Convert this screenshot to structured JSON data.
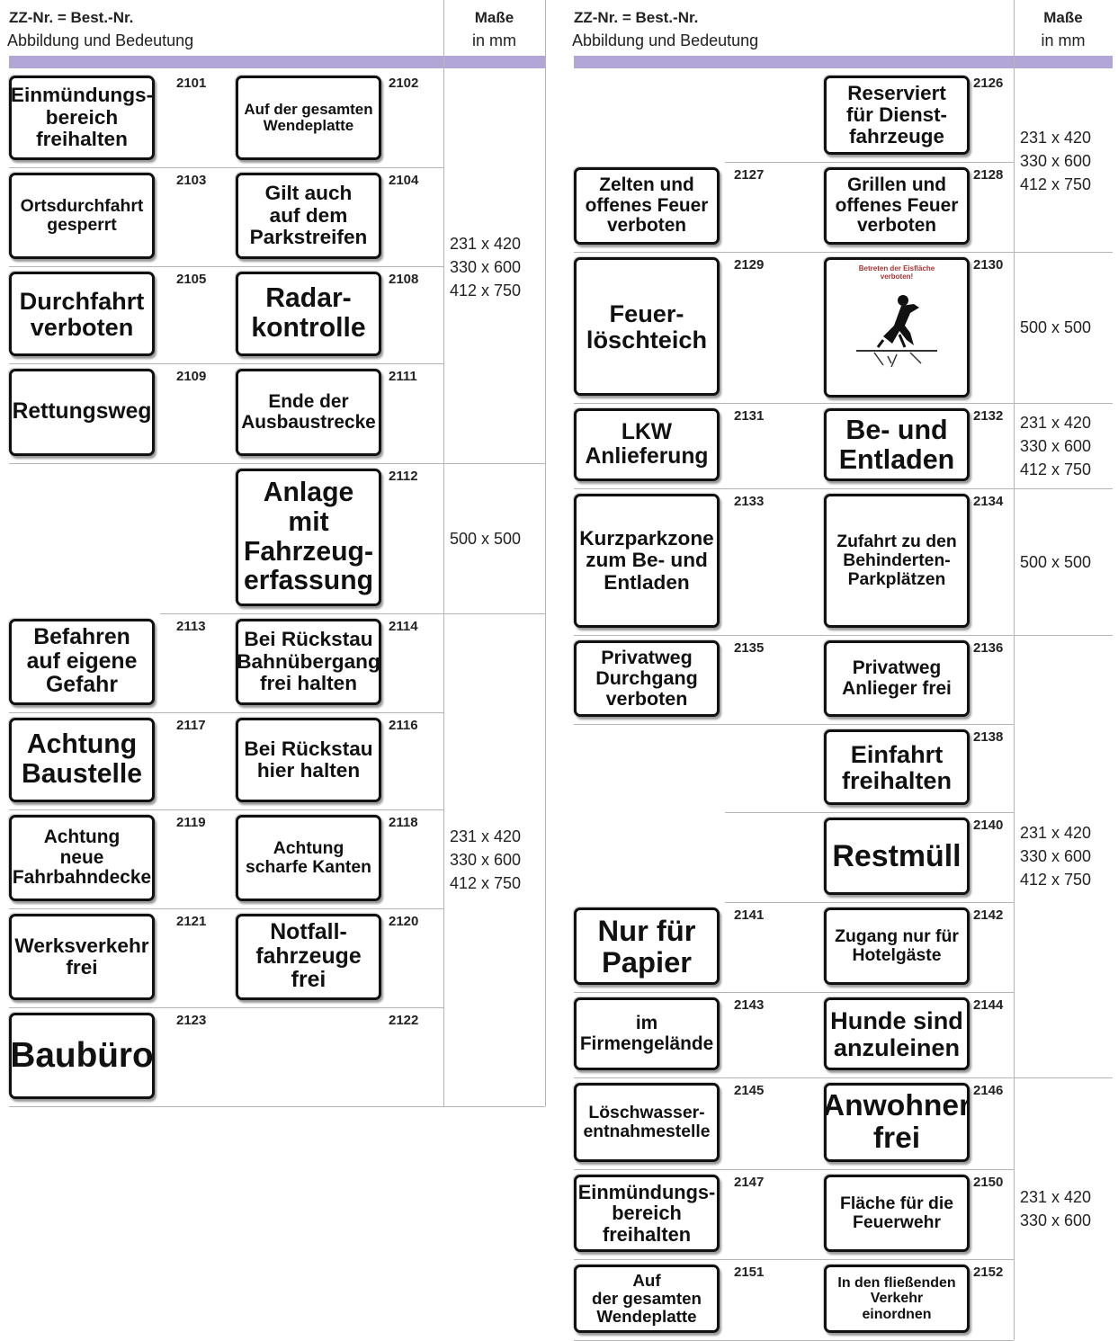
{
  "columns": [
    {
      "header": {
        "title": "ZZ-Nr. = Best.-Nr.",
        "subtitle": "Abbildung und Bedeutung",
        "size_title": "Maße",
        "size_unit": "in mm"
      },
      "groups": [
        {
          "sizes": [
            "231 x 420",
            "330 x 600",
            "412 x 750"
          ],
          "rows": [
            [
              {
                "number": "2101",
                "lines": [
                  "Einmündungs-",
                  "bereich",
                  "freihalten"
                ]
              },
              {
                "number": "2102",
                "lines": [
                  "Auf der gesamten",
                  "Wendeplatte"
                ]
              }
            ],
            [
              {
                "number": "2103",
                "lines": [
                  "Ortsdurchfahrt",
                  "gesperrt"
                ]
              },
              {
                "number": "2104",
                "lines": [
                  "Gilt auch",
                  "auf dem",
                  "Parkstreifen"
                ]
              }
            ],
            [
              {
                "number": "2105",
                "lines": [
                  "Durchfahrt",
                  "verboten"
                ]
              },
              {
                "number": "2108",
                "lines": [
                  "Radar-",
                  "kontrolle"
                ]
              }
            ],
            [
              {
                "number": "2109",
                "lines": [
                  "Rettungsweg"
                ]
              },
              {
                "number": "2111",
                "lines": [
                  "Ende der",
                  "Ausbaustrecke"
                ]
              }
            ]
          ]
        },
        {
          "sizes": [
            "500 x 500"
          ],
          "rows": [
            [
              null,
              {
                "number": "2112",
                "lines": [
                  "Anlage",
                  "mit",
                  "Fahrzeug-",
                  "erfassung"
                ]
              }
            ]
          ]
        },
        {
          "sizes": [
            "231 x 420",
            "330 x 600",
            "412 x 750"
          ],
          "rows": [
            [
              {
                "number": "2113",
                "lines": [
                  "Befahren",
                  "auf eigene",
                  "Gefahr"
                ]
              },
              {
                "number": "2114",
                "lines": [
                  "Bei Rückstau",
                  "Bahnübergang",
                  "frei halten"
                ]
              }
            ],
            [
              {
                "number": "2117",
                "lines": [
                  "Achtung",
                  "Baustelle"
                ]
              },
              {
                "number": "2116",
                "lines": [
                  "Bei Rückstau",
                  "hier halten"
                ]
              }
            ],
            [
              {
                "number": "2119",
                "lines": [
                  "Achtung",
                  "neue",
                  "Fahrbahndecke"
                ]
              },
              {
                "number": "2118",
                "lines": [
                  "Achtung",
                  "scharfe Kanten"
                ]
              }
            ],
            [
              {
                "number": "2121",
                "lines": [
                  "Werksverkehr",
                  "frei"
                ]
              },
              {
                "number": "2120",
                "lines": [
                  "Notfall-",
                  "fahrzeuge",
                  "frei"
                ]
              }
            ],
            [
              {
                "number": "2123",
                "lines": [
                  "Baubüro"
                ]
              },
              {
                "number": "2122"
              }
            ]
          ]
        }
      ]
    },
    {
      "header": {
        "title": "ZZ-Nr. = Best.-Nr.",
        "subtitle": "Abbildung und Bedeutung",
        "size_title": "Maße",
        "size_unit": "in mm"
      },
      "groups": [
        {
          "sizes": [
            "231 x 420",
            "330 x 600",
            "412 x 750"
          ],
          "rows": [
            [
              null,
              {
                "number": "2126",
                "lines": [
                  "Reserviert",
                  "für Dienst-",
                  "fahrzeuge"
                ]
              }
            ],
            [
              {
                "number": "2127",
                "lines": [
                  "Zelten und",
                  "offenes Feuer",
                  "verboten"
                ]
              },
              {
                "number": "2128",
                "lines": [
                  "Grillen und",
                  "offenes Feuer",
                  "verboten"
                ]
              }
            ]
          ]
        },
        {
          "sizes": [
            "500 x 500"
          ],
          "rows": [
            [
              {
                "number": "2129",
                "lines": [
                  "Feuer-",
                  "löschteich"
                ]
              },
              {
                "number": "2130",
                "caption": "Betreten der Eisfläche verboten!"
              }
            ]
          ]
        },
        {
          "sizes": [
            "231 x 420",
            "330 x 600",
            "412 x 750"
          ],
          "rows": [
            [
              {
                "number": "2131",
                "lines": [
                  "LKW",
                  "Anlieferung"
                ]
              },
              {
                "number": "2132",
                "lines": [
                  "Be- und",
                  "Entladen"
                ]
              }
            ]
          ]
        },
        {
          "sizes": [
            "500 x 500"
          ],
          "rows": [
            [
              {
                "number": "2133",
                "lines": [
                  "Kurzparkzone",
                  "zum Be- und",
                  "Entladen"
                ]
              },
              {
                "number": "2134",
                "lines": [
                  "Zufahrt zu den",
                  "Behinderten-",
                  "Parkplätzen"
                ]
              }
            ]
          ]
        },
        {
          "sizes": [
            "231 x 420",
            "330 x 600",
            "412 x 750"
          ],
          "rows": [
            [
              {
                "number": "2135",
                "lines": [
                  "Privatweg",
                  "Durchgang",
                  "verboten"
                ]
              },
              {
                "number": "2136",
                "lines": [
                  "Privatweg",
                  "Anlieger frei"
                ]
              }
            ],
            [
              null,
              {
                "number": "2138",
                "lines": [
                  "Einfahrt",
                  "freihalten"
                ]
              }
            ],
            [
              null,
              {
                "number": "2140",
                "lines": [
                  "Restmüll"
                ]
              }
            ],
            [
              {
                "number": "2141",
                "lines": [
                  "Nur für",
                  "Papier"
                ]
              },
              {
                "number": "2142",
                "lines": [
                  "Zugang nur für",
                  "Hotelgäste"
                ]
              }
            ],
            [
              {
                "number": "2143",
                "lines": [
                  "im",
                  "Firmengelände"
                ]
              },
              {
                "number": "2144",
                "lines": [
                  "Hunde sind",
                  "anzuleinen"
                ]
              }
            ]
          ]
        },
        {
          "sizes": [
            "231 x 420",
            "330 x 600"
          ],
          "rows": [
            [
              {
                "number": "2145",
                "lines": [
                  "Löschwasser-",
                  "entnahmestelle"
                ]
              },
              {
                "number": "2146",
                "lines": [
                  "Anwohner",
                  "frei"
                ]
              }
            ],
            [
              {
                "number": "2147",
                "lines": [
                  "Einmündungs-",
                  "bereich",
                  "freihalten"
                ]
              },
              {
                "number": "2150",
                "lines": [
                  "Fläche für die",
                  "Feuerwehr"
                ]
              }
            ],
            [
              {
                "number": "2151",
                "lines": [
                  "Auf",
                  "der gesamten",
                  "Wendeplatte"
                ]
              },
              {
                "number": "2152",
                "lines": [
                  "In den fließenden",
                  "Verkehr",
                  "einordnen"
                ]
              }
            ]
          ]
        }
      ]
    }
  ]
}
